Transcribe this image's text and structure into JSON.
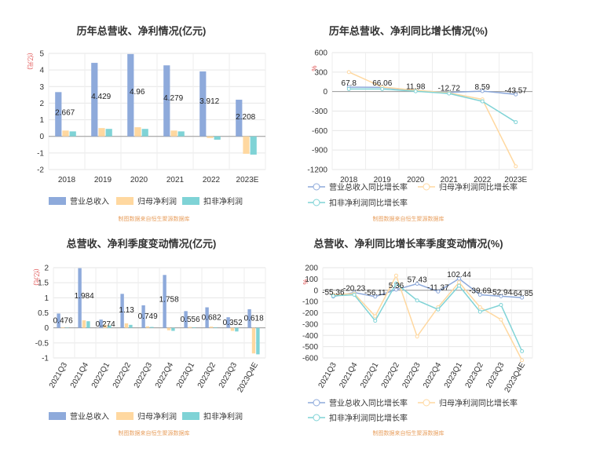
{
  "colors": {
    "revenue": "#8eaadb",
    "parent_profit": "#ffd8a0",
    "deducted_profit": "#7fd3d6",
    "footnote": "#e8a060",
    "unit": "#e05050"
  },
  "footnote": "制图数据来自恒生聚源数据库",
  "chart_data": [
    {
      "type": "bar",
      "title": "历年总营收、净利情况(亿元)",
      "ylabel": "(亿元)",
      "categories": [
        "2018",
        "2019",
        "2020",
        "2021",
        "2022",
        "2023E"
      ],
      "ylim": [
        -2,
        5
      ],
      "yticks": [
        -2,
        -1,
        0,
        1,
        2,
        3,
        4,
        5
      ],
      "grid": true,
      "legend": "bottom",
      "series": [
        {
          "name": "营业总收入",
          "values": [
            2.667,
            4.429,
            4.96,
            4.279,
            3.912,
            2.208
          ]
        },
        {
          "name": "归母净利润",
          "values": [
            0.35,
            0.5,
            0.55,
            0.35,
            -0.1,
            -1.05
          ]
        },
        {
          "name": "扣非净利润",
          "values": [
            0.3,
            0.45,
            0.45,
            0.3,
            -0.2,
            -1.1
          ]
        }
      ],
      "data_labels": [
        "2.667",
        "4.429",
        "4.96",
        "4.279",
        "3.912",
        "2.208"
      ]
    },
    {
      "type": "line",
      "title": "历年总营收、净利同比增长情况(%)",
      "ylabel": "%",
      "categories": [
        "2018",
        "2019",
        "2020",
        "2021",
        "2022",
        "2023E"
      ],
      "ylim": [
        -1200,
        600
      ],
      "yticks": [
        -1200,
        -900,
        -600,
        -300,
        0,
        300,
        600
      ],
      "grid": true,
      "legend": "bottom",
      "series": [
        {
          "name": "营业总收入同比增长率",
          "values": [
            67.8,
            66.06,
            11.98,
            -12.72,
            8.59,
            -43.57
          ]
        },
        {
          "name": "归母净利润同比增长率",
          "values": [
            300,
            70,
            20,
            -20,
            -120,
            -1150
          ]
        },
        {
          "name": "扣非净利润同比增长率",
          "values": [
            40,
            40,
            5,
            -30,
            -150,
            -470
          ]
        }
      ],
      "data_labels": [
        "67.8",
        "66.06",
        "11.98",
        "-12.72",
        "8.59",
        "-43.57"
      ]
    },
    {
      "type": "bar",
      "title": "总营收、净利季度变动情况(亿元)",
      "ylabel": "(亿元)",
      "categories": [
        "2021Q3",
        "2021Q4",
        "2022Q1",
        "2022Q2",
        "2022Q3",
        "2022Q4",
        "2023Q1",
        "2023Q2",
        "2023Q3",
        "2023Q4E"
      ],
      "ylim": [
        -1,
        2
      ],
      "yticks": [
        -1,
        -0.5,
        0,
        0.5,
        1,
        1.5,
        2
      ],
      "grid": true,
      "legend": "bottom",
      "series": [
        {
          "name": "营业总收入",
          "values": [
            0.476,
            1.984,
            0.274,
            1.13,
            0.749,
            1.758,
            0.556,
            0.682,
            0.352,
            0.618
          ]
        },
        {
          "name": "归母净利润",
          "values": [
            0.02,
            0.25,
            0.1,
            0.15,
            0.05,
            -0.08,
            0.03,
            0.04,
            -0.1,
            -0.85
          ]
        },
        {
          "name": "扣非净利润",
          "values": [
            0.01,
            0.22,
            0.08,
            0.1,
            0.03,
            -0.1,
            0.02,
            0.02,
            -0.12,
            -0.88
          ]
        }
      ],
      "data_labels": [
        "0.476",
        "1.984",
        "0.274",
        "1.13",
        "0.749",
        "1.758",
        "0.556",
        "0.682",
        "0.352",
        "0.618"
      ]
    },
    {
      "type": "line",
      "title": "总营收、净利同比增长率季度变动情况(%)",
      "ylabel": "%",
      "categories": [
        "2021Q3",
        "2021Q4",
        "2022Q1",
        "2022Q2",
        "2022Q3",
        "2022Q4",
        "2023Q1",
        "2023Q2",
        "2023Q3",
        "2023Q4E"
      ],
      "ylim": [
        -600,
        200
      ],
      "yticks": [
        -600,
        -500,
        -400,
        -300,
        -200,
        -100,
        0,
        100,
        200
      ],
      "grid": true,
      "legend": "bottom",
      "series": [
        {
          "name": "营业总收入同比增长率",
          "values": [
            -55.36,
            -20.23,
            -56.11,
            5.36,
            57.43,
            -11.37,
            102.44,
            -39.69,
            -52.94,
            -64.85
          ]
        },
        {
          "name": "归母净利润同比增长率",
          "values": [
            -40,
            -30,
            -230,
            130,
            -410,
            -150,
            70,
            -150,
            -260,
            -620
          ]
        },
        {
          "name": "扣非净利润同比增长率",
          "values": [
            -50,
            -40,
            -270,
            60,
            -90,
            -170,
            40,
            -190,
            -130,
            -540
          ]
        }
      ],
      "data_labels": [
        "-55.36",
        "-20.23",
        "-56.11",
        "5.36",
        "57.43",
        "-11.37",
        "102.44",
        "-39.69",
        "-52.94",
        "-64.85"
      ]
    }
  ]
}
